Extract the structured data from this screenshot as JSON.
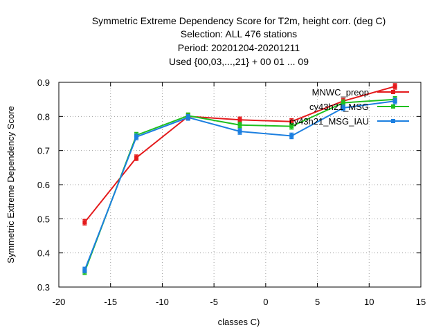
{
  "chart_data": {
    "type": "line",
    "title_lines": [
      "Symmetric Extreme Dependency Score  for T2m, height corr. (deg C)",
      "Selection: ALL    476 stations",
      "Period: 20201204-20201211",
      "Used {00,03,...,21} + 00 01 ... 09"
    ],
    "xlabel": "classes C)",
    "ylabel": "Symmetric Extreme Dependency Score",
    "xlim": [
      -20,
      15
    ],
    "ylim": [
      0.3,
      0.9
    ],
    "xticks": [
      -20,
      -15,
      -10,
      -5,
      0,
      5,
      10,
      15
    ],
    "xtick_labels": [
      "-20",
      "-15",
      "-10",
      "-5",
      "0",
      "5",
      "10",
      "15"
    ],
    "yticks": [
      0.3,
      0.4,
      0.5,
      0.6,
      0.7,
      0.8,
      0.9
    ],
    "ytick_labels": [
      "0.3",
      "0.4",
      "0.5",
      "0.6",
      "0.7",
      "0.8",
      "0.9"
    ],
    "grid": true,
    "legend_position": "top-right",
    "series": [
      {
        "name": "MNWC_preop",
        "color": "#e41a1c",
        "x": [
          -17.5,
          -12.5,
          -7.5,
          -2.5,
          2.5,
          7.5,
          12.5
        ],
        "values": [
          0.49,
          0.679,
          0.8,
          0.79,
          0.785,
          0.845,
          0.888
        ]
      },
      {
        "name": "cy43h21_MSG",
        "color": "#1ec01e",
        "x": [
          -17.5,
          -12.5,
          -7.5,
          -2.5,
          2.5,
          7.5,
          12.5
        ],
        "values": [
          0.345,
          0.745,
          0.802,
          0.775,
          0.771,
          0.84,
          0.85
        ]
      },
      {
        "name": "cy43h21_MSG_IAU",
        "color": "#1c7fe0",
        "x": [
          -17.5,
          -12.5,
          -7.5,
          -2.5,
          2.5,
          7.5,
          12.5
        ],
        "values": [
          0.35,
          0.74,
          0.797,
          0.756,
          0.743,
          0.825,
          0.845
        ]
      }
    ]
  }
}
